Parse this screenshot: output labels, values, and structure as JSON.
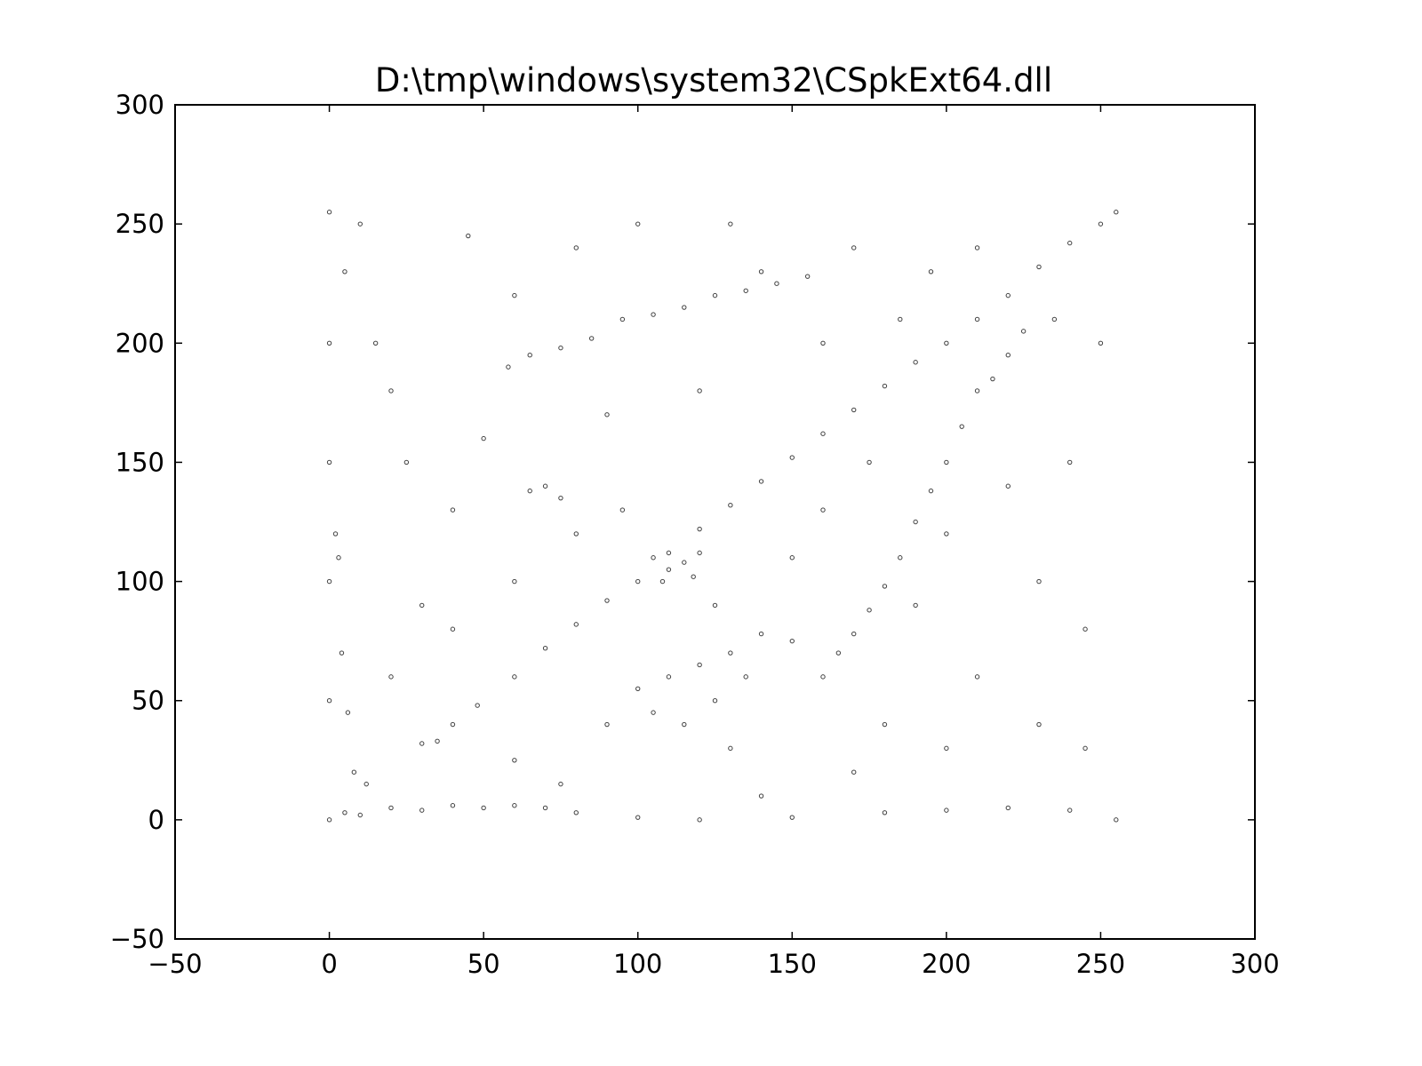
{
  "chart_data": {
    "type": "scatter",
    "title": "D:\\tmp\\windows\\system32\\CSpkExt64.dll",
    "xlabel": "",
    "ylabel": "",
    "xlim": [
      -50,
      300
    ],
    "ylim": [
      -50,
      300
    ],
    "xticks": [
      -50,
      0,
      50,
      100,
      150,
      200,
      250,
      300
    ],
    "yticks": [
      -50,
      0,
      50,
      100,
      150,
      200,
      250,
      300
    ],
    "xtick_labels": [
      "−50",
      "0",
      "50",
      "100",
      "150",
      "200",
      "250",
      "300"
    ],
    "ytick_labels": [
      "−50",
      "0",
      "50",
      "100",
      "150",
      "200",
      "250",
      "300"
    ],
    "grid": false,
    "legend": "none",
    "marker_color": "#000000",
    "series": [
      {
        "points": [
          [
            0,
            0
          ],
          [
            5,
            3
          ],
          [
            10,
            2
          ],
          [
            20,
            5
          ],
          [
            30,
            4
          ],
          [
            40,
            6
          ],
          [
            50,
            5
          ],
          [
            60,
            6
          ],
          [
            70,
            5
          ],
          [
            80,
            3
          ],
          [
            100,
            1
          ],
          [
            120,
            0
          ],
          [
            150,
            1
          ],
          [
            180,
            3
          ],
          [
            200,
            4
          ],
          [
            220,
            5
          ],
          [
            240,
            4
          ],
          [
            255,
            0
          ],
          [
            0,
            50
          ],
          [
            0,
            100
          ],
          [
            0,
            150
          ],
          [
            0,
            200
          ],
          [
            0,
            255
          ],
          [
            2,
            120
          ],
          [
            3,
            110
          ],
          [
            5,
            230
          ],
          [
            4,
            70
          ],
          [
            6,
            45
          ],
          [
            8,
            20
          ],
          [
            12,
            15
          ],
          [
            30,
            32
          ],
          [
            35,
            33
          ],
          [
            40,
            40
          ],
          [
            48,
            48
          ],
          [
            60,
            60
          ],
          [
            70,
            72
          ],
          [
            80,
            82
          ],
          [
            90,
            92
          ],
          [
            100,
            100
          ],
          [
            110,
            112
          ],
          [
            120,
            122
          ],
          [
            130,
            132
          ],
          [
            140,
            142
          ],
          [
            150,
            152
          ],
          [
            160,
            162
          ],
          [
            170,
            172
          ],
          [
            180,
            182
          ],
          [
            190,
            192
          ],
          [
            200,
            200
          ],
          [
            210,
            210
          ],
          [
            220,
            220
          ],
          [
            230,
            232
          ],
          [
            240,
            242
          ],
          [
            250,
            250
          ],
          [
            255,
            255
          ],
          [
            58,
            190
          ],
          [
            65,
            195
          ],
          [
            75,
            198
          ],
          [
            85,
            202
          ],
          [
            95,
            210
          ],
          [
            105,
            212
          ],
          [
            115,
            215
          ],
          [
            125,
            220
          ],
          [
            135,
            222
          ],
          [
            145,
            225
          ],
          [
            155,
            228
          ],
          [
            160,
            60
          ],
          [
            165,
            70
          ],
          [
            170,
            78
          ],
          [
            175,
            88
          ],
          [
            180,
            98
          ],
          [
            185,
            110
          ],
          [
            190,
            125
          ],
          [
            195,
            138
          ],
          [
            200,
            150
          ],
          [
            205,
            165
          ],
          [
            210,
            180
          ],
          [
            215,
            185
          ],
          [
            220,
            195
          ],
          [
            225,
            205
          ],
          [
            100,
            55
          ],
          [
            110,
            60
          ],
          [
            120,
            65
          ],
          [
            130,
            70
          ],
          [
            140,
            78
          ],
          [
            105,
            45
          ],
          [
            115,
            40
          ],
          [
            125,
            50
          ],
          [
            150,
            75
          ],
          [
            135,
            60
          ],
          [
            105,
            110
          ],
          [
            110,
            105
          ],
          [
            115,
            108
          ],
          [
            120,
            112
          ],
          [
            108,
            100
          ],
          [
            118,
            102
          ],
          [
            70,
            140
          ],
          [
            75,
            135
          ],
          [
            65,
            138
          ],
          [
            20,
            180
          ],
          [
            40,
            130
          ],
          [
            60,
            220
          ],
          [
            80,
            240
          ],
          [
            90,
            170
          ],
          [
            130,
            250
          ],
          [
            160,
            200
          ],
          [
            170,
            240
          ],
          [
            190,
            90
          ],
          [
            210,
            60
          ],
          [
            230,
            100
          ],
          [
            240,
            150
          ],
          [
            250,
            200
          ],
          [
            200,
            30
          ],
          [
            180,
            40
          ],
          [
            170,
            20
          ],
          [
            140,
            10
          ],
          [
            60,
            25
          ],
          [
            30,
            90
          ],
          [
            20,
            60
          ],
          [
            15,
            200
          ],
          [
            50,
            160
          ],
          [
            80,
            120
          ],
          [
            120,
            180
          ],
          [
            150,
            110
          ],
          [
            200,
            120
          ],
          [
            230,
            40
          ],
          [
            245,
            80
          ],
          [
            210,
            240
          ],
          [
            100,
            250
          ],
          [
            140,
            230
          ],
          [
            60,
            100
          ],
          [
            40,
            80
          ],
          [
            25,
            150
          ],
          [
            90,
            40
          ],
          [
            130,
            30
          ],
          [
            160,
            130
          ],
          [
            185,
            210
          ],
          [
            220,
            140
          ],
          [
            235,
            210
          ],
          [
            245,
            30
          ],
          [
            10,
            250
          ],
          [
            45,
            245
          ],
          [
            75,
            15
          ],
          [
            95,
            130
          ],
          [
            125,
            90
          ],
          [
            175,
            150
          ],
          [
            195,
            230
          ]
        ]
      }
    ]
  }
}
